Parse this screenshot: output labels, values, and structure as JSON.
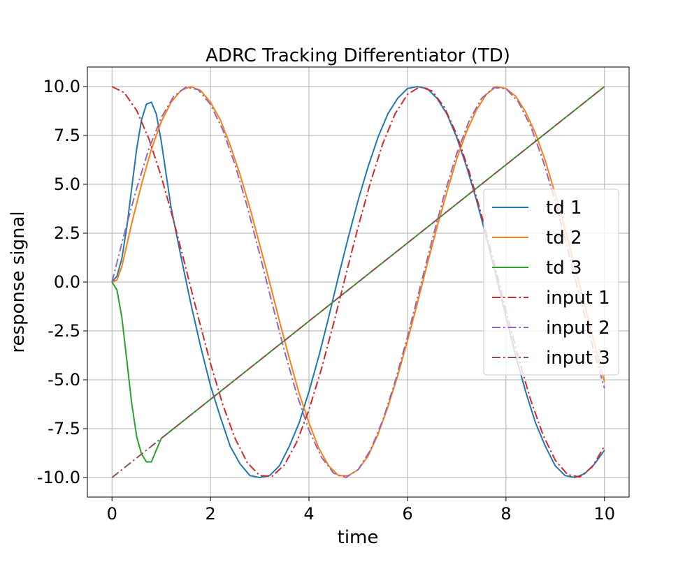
{
  "chart_data": {
    "type": "line",
    "title": "ADRC Tracking Differentiator (TD)",
    "xlabel": "time",
    "ylabel": "response signal",
    "xlim": [
      -0.5,
      10.5
    ],
    "ylim": [
      -11.0,
      11.0
    ],
    "x_ticks": [
      0,
      2,
      4,
      6,
      8,
      10
    ],
    "x_tick_labels": [
      "0",
      "2",
      "4",
      "6",
      "8",
      "10"
    ],
    "y_ticks": [
      10,
      7.5,
      5,
      2.5,
      0,
      -2.5,
      -5,
      -7.5,
      -10
    ],
    "y_tick_labels": [
      "10.0",
      "7.5",
      "5.0",
      "2.5",
      "0.0",
      "-2.5",
      "-5.0",
      "-7.5",
      "-10.0"
    ],
    "grid": true,
    "legend_position": "center-right",
    "series": [
      {
        "name": "td 1",
        "color": "#1f77b4",
        "style": "solid",
        "x": [
          0,
          0.1,
          0.2,
          0.3,
          0.4,
          0.5,
          0.6,
          0.7,
          0.8,
          0.9,
          1.0,
          1.2,
          1.4,
          1.6,
          1.8,
          2.0,
          2.2,
          2.4,
          2.6,
          2.8,
          3.0,
          3.2,
          3.4,
          3.6,
          3.8,
          4.0,
          4.2,
          4.4,
          4.6,
          4.8,
          5.0,
          5.2,
          5.4,
          5.6,
          5.8,
          6.0,
          6.2,
          6.4,
          6.6,
          6.8,
          7.0,
          7.2,
          7.4,
          7.6,
          7.8,
          8.0,
          8.2,
          8.4,
          8.6,
          8.8,
          9.0,
          9.2,
          9.4,
          9.6,
          9.8,
          10.0
        ],
        "y": [
          0,
          0.3,
          1.2,
          2.8,
          4.8,
          6.8,
          8.3,
          9.1,
          9.2,
          8.6,
          7.2,
          3.8,
          1.3,
          -1.1,
          -3.3,
          -5.3,
          -6.9,
          -8.4,
          -9.3,
          -9.9,
          -10.0,
          -9.9,
          -9.4,
          -8.4,
          -7.2,
          -5.6,
          -3.8,
          -1.8,
          0.3,
          2.3,
          4.2,
          5.9,
          7.4,
          8.6,
          9.4,
          9.9,
          10.0,
          9.9,
          9.4,
          8.6,
          7.4,
          5.9,
          4.2,
          2.3,
          0.3,
          -1.8,
          -3.8,
          -5.6,
          -7.2,
          -8.4,
          -9.4,
          -9.9,
          -10.0,
          -9.8,
          -9.3,
          -8.6
        ]
      },
      {
        "name": "td 2",
        "color": "#ff7f0e",
        "style": "solid",
        "x": [
          0,
          0.1,
          0.2,
          0.3,
          0.4,
          0.5,
          0.6,
          0.8,
          1.0,
          1.2,
          1.4,
          1.6,
          1.8,
          2.0,
          2.2,
          2.4,
          2.6,
          2.8,
          3.0,
          3.2,
          3.4,
          3.6,
          3.8,
          4.0,
          4.2,
          4.4,
          4.6,
          4.8,
          5.0,
          5.2,
          5.4,
          5.6,
          5.8,
          6.0,
          6.2,
          6.4,
          6.6,
          6.8,
          7.0,
          7.2,
          7.4,
          7.6,
          7.8,
          8.0,
          8.2,
          8.4,
          8.6,
          8.8,
          9.0,
          9.2,
          9.4,
          9.6,
          9.8,
          10.0
        ],
        "y": [
          0,
          0.1,
          0.8,
          1.9,
          3.0,
          4.0,
          5.0,
          6.8,
          8.2,
          9.2,
          9.8,
          10.0,
          9.8,
          9.2,
          8.3,
          7.0,
          5.5,
          3.8,
          1.9,
          0,
          -2.0,
          -3.9,
          -5.7,
          -7.2,
          -8.5,
          -9.4,
          -9.9,
          -9.9,
          -9.6,
          -8.9,
          -7.8,
          -6.4,
          -4.8,
          -3.0,
          -1.1,
          0.9,
          2.8,
          4.6,
          6.3,
          7.7,
          8.8,
          9.6,
          10.0,
          9.9,
          9.5,
          8.7,
          7.6,
          6.2,
          4.5,
          2.7,
          0.8,
          -1.2,
          -3.2,
          -5.1
        ]
      },
      {
        "name": "td 3",
        "color": "#2ca02c",
        "style": "solid",
        "x": [
          0,
          0.1,
          0.2,
          0.3,
          0.4,
          0.5,
          0.6,
          0.7,
          0.8,
          0.9,
          1.0,
          1.5,
          2,
          3,
          4,
          5,
          6,
          7,
          8,
          9,
          10
        ],
        "y": [
          0,
          -0.4,
          -1.8,
          -4.0,
          -6.2,
          -7.9,
          -8.8,
          -9.2,
          -9.2,
          -8.6,
          -8.0,
          -7.0,
          -6.0,
          -4.0,
          -2.0,
          0,
          2.0,
          4.0,
          6.0,
          8.0,
          10.0
        ]
      },
      {
        "name": "input 1",
        "color": "#d62728",
        "style": "dashdot",
        "x": [
          0,
          0.25,
          0.5,
          0.75,
          1.0,
          1.25,
          1.5,
          1.75,
          2.0,
          2.25,
          2.5,
          2.75,
          3.0,
          3.25,
          3.5,
          3.75,
          4.0,
          4.25,
          4.5,
          4.75,
          5.0,
          5.25,
          5.5,
          5.75,
          6.0,
          6.25,
          6.5,
          6.75,
          7.0,
          7.25,
          7.5,
          7.75,
          8.0,
          8.25,
          8.5,
          8.75,
          9.0,
          9.25,
          9.5,
          9.75,
          10.0
        ],
        "y": [
          10.0,
          9.69,
          8.78,
          7.32,
          5.4,
          3.15,
          0.71,
          -1.78,
          -4.16,
          -6.28,
          -8.01,
          -9.25,
          -9.9,
          -9.94,
          -9.36,
          -8.2,
          -6.54,
          -4.46,
          -2.11,
          0.38,
          2.84,
          5.11,
          7.09,
          8.61,
          9.6,
          9.99,
          9.77,
          8.94,
          7.54,
          5.67,
          3.47,
          1.04,
          -1.46,
          -3.86,
          -6.02,
          -7.81,
          -9.11,
          -9.85,
          -9.97,
          -9.46,
          -8.39
        ]
      },
      {
        "name": "input 2",
        "color": "#9467bd",
        "style": "dashdot",
        "x": [
          0,
          0.25,
          0.5,
          0.75,
          1.0,
          1.25,
          1.5,
          1.75,
          2.0,
          2.25,
          2.5,
          2.75,
          3.0,
          3.25,
          3.5,
          3.75,
          4.0,
          4.25,
          4.5,
          4.75,
          5.0,
          5.25,
          5.5,
          5.75,
          6.0,
          6.25,
          6.5,
          6.75,
          7.0,
          7.25,
          7.5,
          7.75,
          8.0,
          8.25,
          8.5,
          8.75,
          9.0,
          9.25,
          9.5,
          9.75,
          10.0
        ],
        "y": [
          0,
          2.47,
          4.79,
          6.82,
          8.41,
          9.49,
          9.97,
          9.84,
          9.09,
          7.78,
          5.98,
          3.82,
          1.41,
          -1.08,
          -3.51,
          -5.72,
          -7.57,
          -8.95,
          -9.78,
          -10.0,
          -9.59,
          -8.59,
          -7.06,
          -5.09,
          -2.79,
          -0.32,
          2.15,
          4.5,
          6.57,
          8.23,
          9.38,
          9.95,
          9.89,
          9.22,
          7.98,
          6.24,
          4.12,
          1.73,
          -0.75,
          -3.2,
          -5.44
        ]
      },
      {
        "name": "input 3",
        "color": "#8c564b",
        "style": "dashdot",
        "x": [
          0,
          10
        ],
        "y": [
          -10.0,
          10.0
        ]
      }
    ]
  }
}
